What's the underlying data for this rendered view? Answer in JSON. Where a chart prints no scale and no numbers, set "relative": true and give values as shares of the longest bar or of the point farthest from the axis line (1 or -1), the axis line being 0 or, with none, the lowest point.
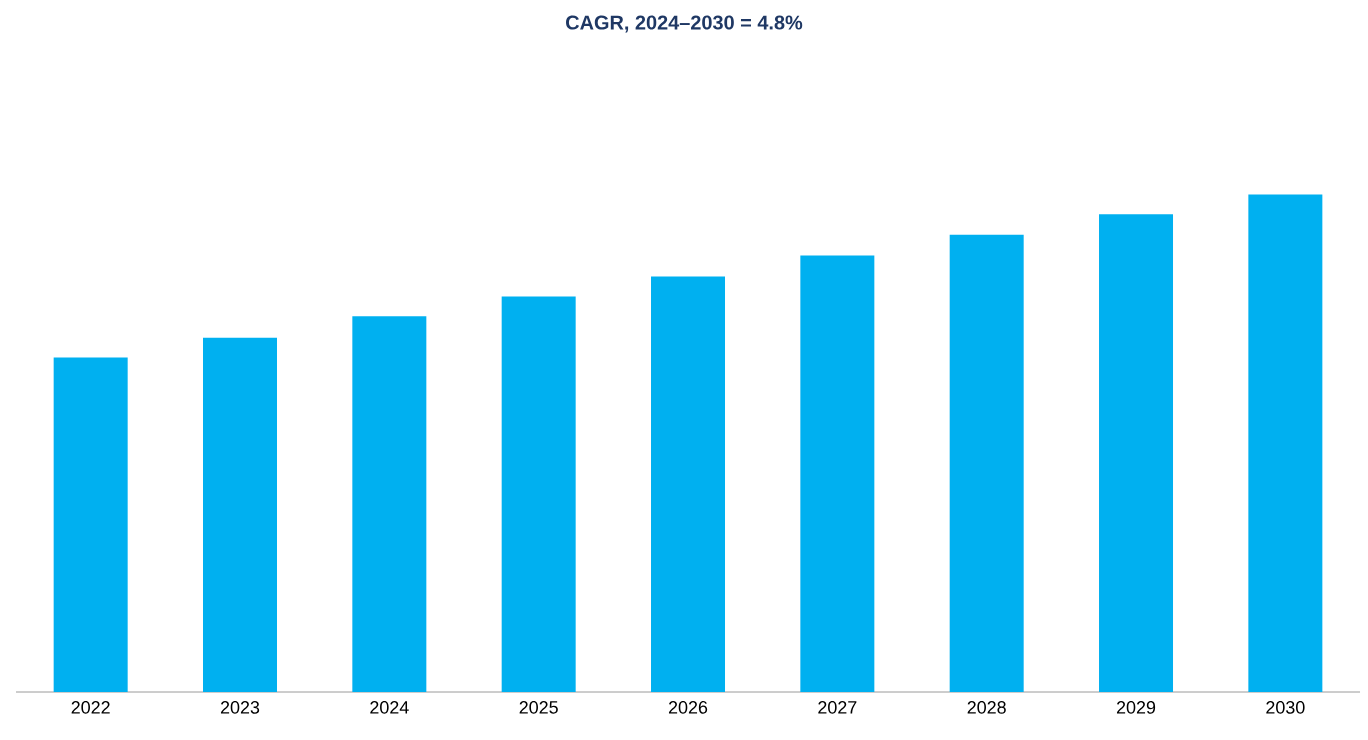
{
  "chart_data": {
    "type": "bar",
    "title": "CAGR, 2024–2030 = 4.8%",
    "categories": [
      "2022",
      "2023",
      "2024",
      "2025",
      "2026",
      "2027",
      "2028",
      "2029",
      "2030"
    ],
    "values": [
      0.672,
      0.712,
      0.755,
      0.795,
      0.835,
      0.877,
      0.919,
      0.96,
      1
    ],
    "color": "#00b0f0",
    "relative": true
  }
}
